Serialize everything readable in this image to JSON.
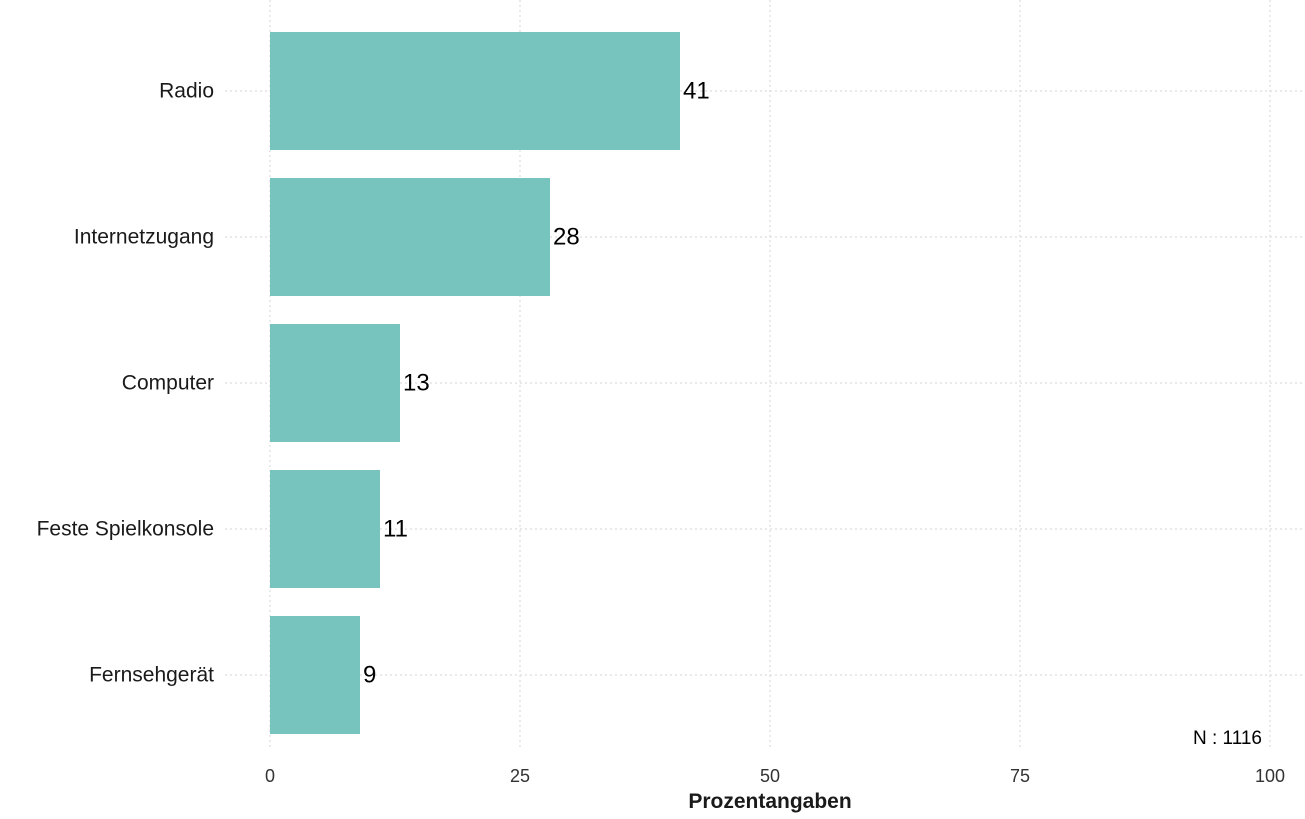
{
  "chart_data": {
    "type": "bar",
    "orientation": "horizontal",
    "categories": [
      "Radio",
      "Internetzugang",
      "Computer",
      "Feste Spielkonsole",
      "Fernsehgerät"
    ],
    "values": [
      41,
      28,
      13,
      11,
      9
    ],
    "value_labels": [
      "41",
      "28",
      "13",
      "11",
      "9"
    ],
    "xlabel": "Prozentangaben",
    "ylabel": "",
    "xlim": [
      0,
      100
    ],
    "xticks": [
      0,
      25,
      50,
      75,
      100
    ],
    "xtick_labels": [
      "0",
      "25",
      "50",
      "75",
      "100"
    ],
    "grid": true,
    "legend": "none",
    "annotation": "N : 1116",
    "bar_color": "#76c4bd"
  }
}
